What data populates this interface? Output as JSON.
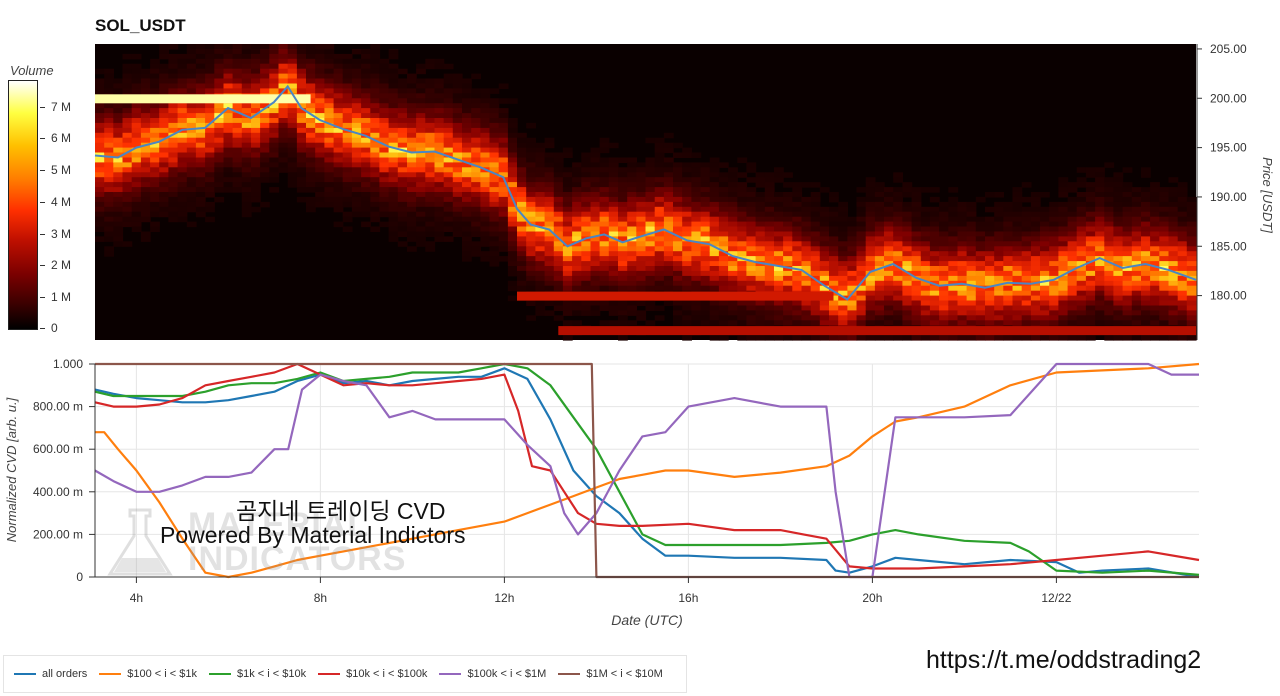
{
  "header": {
    "title": "SOL_USDT"
  },
  "colorbar": {
    "title": "Volume",
    "ticks": [
      "7 M",
      "6 M",
      "5 M",
      "4 M",
      "3 M",
      "2 M",
      "1 M",
      "0"
    ]
  },
  "watermark": {
    "line1": "곰지네 트레이딩 CVD",
    "line2": "Powered By Material Indictors",
    "logo_line1": "MATERIAL",
    "logo_line2": "INDICATORS"
  },
  "url": "https://t.me/oddstrading2",
  "colors": {
    "blue": "#1f77b4",
    "orange": "#ff7f0e",
    "green": "#2ca02c",
    "red": "#d62728",
    "purple": "#9467bd",
    "brown": "#8c564b"
  },
  "chart_data": [
    {
      "type": "heatmap",
      "title": "SOL_USDT",
      "ylabel": "Price [USDT]",
      "ylim": [
        175.5,
        205.5
      ],
      "y_ticks": [
        "205.00",
        "200.00",
        "195.00",
        "190.00",
        "185.00",
        "180.00"
      ],
      "y_tick_values": [
        205,
        200,
        195,
        190,
        185,
        180
      ],
      "x_ticks": [
        "4h",
        "8h",
        "12h",
        "16h",
        "20h",
        "12/22"
      ],
      "x_tick_values": [
        4,
        8,
        12,
        16,
        20,
        24
      ],
      "xlim": [
        3.1,
        27.1
      ],
      "colorbar_label": "Volume",
      "price_line": {
        "x": [
          3.1,
          3.6,
          4.0,
          4.5,
          5.0,
          5.5,
          6.0,
          6.5,
          7.0,
          7.3,
          7.6,
          8.0,
          8.5,
          9.0,
          9.5,
          10.0,
          10.5,
          11.0,
          11.5,
          12.0,
          12.3,
          12.6,
          13.0,
          13.4,
          13.8,
          14.2,
          14.6,
          15.0,
          15.5,
          16.0,
          16.5,
          17.0,
          17.5,
          18.0,
          18.5,
          19.0,
          19.5,
          20.0,
          20.5,
          21.0,
          21.5,
          22.0,
          22.5,
          23.0,
          23.5,
          24.0,
          24.5,
          25.0,
          25.5,
          26.0,
          26.5,
          27.1
        ],
        "y": [
          194.2,
          194.0,
          195.0,
          195.6,
          196.8,
          197.0,
          199.0,
          198.0,
          199.6,
          201.2,
          199.0,
          197.8,
          196.9,
          196.2,
          195.1,
          194.5,
          194.6,
          193.8,
          193.0,
          192.0,
          188.8,
          187.2,
          186.7,
          185.0,
          185.8,
          186.2,
          185.4,
          186.0,
          186.7,
          185.6,
          185.2,
          184.0,
          183.4,
          183.0,
          182.6,
          181.0,
          179.6,
          182.4,
          183.2,
          181.8,
          181.0,
          181.2,
          180.8,
          181.3,
          181.2,
          181.6,
          182.8,
          183.8,
          182.8,
          183.2,
          182.6,
          181.6
        ]
      },
      "volume_bands": [
        {
          "price": 200.0,
          "x_range": [
            3.1,
            7.8
          ],
          "volume_m": 7.4
        },
        {
          "price": 180.0,
          "x_range": [
            12.3,
            19.2
          ],
          "volume_m": 3.6
        },
        {
          "price": 176.5,
          "x_range": [
            13.2,
            27.1
          ],
          "volume_m": 3.1
        }
      ]
    },
    {
      "type": "line",
      "ylabel": "Normalized CVD [arb. u.]",
      "xlabel": "Date (UTC)",
      "ylim": [
        0,
        1
      ],
      "xlim": [
        3.1,
        27.1
      ],
      "y_ticks": [
        "1.000",
        "800.00 m",
        "600.00 m",
        "400.00 m",
        "200.00 m",
        "0"
      ],
      "y_tick_values": [
        1.0,
        0.8,
        0.6,
        0.4,
        0.2,
        0.0
      ],
      "x_ticks": [
        "4h",
        "8h",
        "12h",
        "16h",
        "20h",
        "12/22"
      ],
      "x_tick_values": [
        4,
        8,
        12,
        16,
        20,
        24
      ],
      "series": [
        {
          "name": "all orders",
          "color": "#1f77b4",
          "x": [
            3.1,
            3.5,
            4.0,
            4.5,
            5.0,
            5.5,
            6.0,
            6.5,
            7.0,
            7.5,
            8.0,
            8.5,
            9.0,
            9.5,
            10.0,
            10.5,
            11.0,
            11.5,
            12.0,
            12.5,
            13.0,
            13.5,
            14.0,
            14.5,
            15.0,
            15.5,
            16.0,
            17.0,
            18.0,
            19.0,
            19.2,
            19.5,
            20.0,
            20.5,
            21.0,
            22.0,
            23.0,
            24.0,
            24.5,
            25.0,
            26.0,
            27.1
          ],
          "y": [
            0.88,
            0.86,
            0.84,
            0.83,
            0.82,
            0.82,
            0.83,
            0.85,
            0.87,
            0.92,
            0.95,
            0.91,
            0.92,
            0.9,
            0.92,
            0.93,
            0.94,
            0.94,
            0.98,
            0.93,
            0.74,
            0.5,
            0.38,
            0.3,
            0.18,
            0.1,
            0.1,
            0.09,
            0.09,
            0.08,
            0.03,
            0.02,
            0.05,
            0.09,
            0.08,
            0.06,
            0.08,
            0.07,
            0.02,
            0.03,
            0.04,
            0.0
          ]
        },
        {
          "name": "$100 < i < $1k",
          "color": "#ff7f0e",
          "x": [
            3.1,
            3.3,
            3.6,
            4.0,
            4.5,
            5.0,
            5.5,
            6.0,
            6.5,
            7.0,
            7.5,
            8.0,
            9.0,
            10.0,
            11.0,
            12.0,
            12.5,
            13.0,
            13.5,
            14.0,
            14.5,
            15.0,
            15.5,
            16.0,
            17.0,
            18.0,
            19.0,
            19.5,
            20.0,
            20.5,
            21.0,
            22.0,
            23.0,
            24.0,
            25.0,
            26.0,
            27.1
          ],
          "y": [
            0.68,
            0.68,
            0.6,
            0.5,
            0.35,
            0.18,
            0.02,
            0.0,
            0.02,
            0.05,
            0.08,
            0.1,
            0.14,
            0.18,
            0.22,
            0.26,
            0.3,
            0.34,
            0.38,
            0.42,
            0.46,
            0.48,
            0.5,
            0.5,
            0.47,
            0.49,
            0.52,
            0.57,
            0.66,
            0.73,
            0.75,
            0.8,
            0.9,
            0.96,
            0.97,
            0.98,
            1.0
          ]
        },
        {
          "name": "$1k < i < $10k",
          "color": "#2ca02c",
          "x": [
            3.1,
            3.5,
            4.0,
            4.5,
            5.0,
            5.5,
            6.0,
            6.5,
            7.0,
            7.5,
            8.0,
            8.5,
            9.0,
            9.5,
            10.0,
            10.5,
            11.0,
            11.5,
            12.0,
            12.5,
            13.0,
            13.5,
            14.0,
            14.5,
            15.0,
            15.5,
            16.0,
            17.0,
            18.0,
            19.0,
            19.5,
            20.0,
            20.5,
            21.0,
            22.0,
            23.0,
            23.4,
            24.0,
            25.0,
            26.0,
            27.1
          ],
          "y": [
            0.87,
            0.85,
            0.85,
            0.85,
            0.85,
            0.87,
            0.9,
            0.91,
            0.91,
            0.93,
            0.96,
            0.92,
            0.93,
            0.94,
            0.96,
            0.96,
            0.96,
            0.98,
            1.0,
            0.98,
            0.9,
            0.75,
            0.6,
            0.4,
            0.2,
            0.15,
            0.15,
            0.15,
            0.15,
            0.16,
            0.17,
            0.2,
            0.22,
            0.2,
            0.17,
            0.16,
            0.12,
            0.03,
            0.02,
            0.03,
            0.01
          ]
        },
        {
          "name": "$10k < i < $100k",
          "color": "#d62728",
          "x": [
            3.1,
            3.5,
            4.0,
            4.5,
            5.0,
            5.5,
            6.0,
            6.5,
            7.0,
            7.5,
            8.0,
            8.5,
            9.0,
            9.5,
            10.0,
            10.5,
            11.0,
            11.5,
            12.0,
            12.3,
            12.6,
            13.0,
            13.3,
            13.6,
            14.0,
            14.5,
            15.0,
            16.0,
            17.0,
            18.0,
            18.5,
            19.0,
            19.5,
            20.0,
            21.0,
            22.0,
            23.0,
            24.0,
            25.0,
            26.0,
            27.1
          ],
          "y": [
            0.82,
            0.8,
            0.8,
            0.81,
            0.84,
            0.9,
            0.92,
            0.94,
            0.96,
            1.0,
            0.95,
            0.9,
            0.91,
            0.9,
            0.9,
            0.91,
            0.92,
            0.93,
            0.95,
            0.78,
            0.52,
            0.5,
            0.4,
            0.3,
            0.25,
            0.24,
            0.24,
            0.25,
            0.22,
            0.22,
            0.2,
            0.18,
            0.05,
            0.04,
            0.04,
            0.05,
            0.06,
            0.08,
            0.1,
            0.12,
            0.08
          ]
        },
        {
          "name": "$100k < i < $1M",
          "color": "#9467bd",
          "x": [
            3.1,
            3.5,
            4.0,
            4.5,
            5.0,
            5.5,
            6.0,
            6.5,
            7.0,
            7.3,
            7.6,
            8.0,
            8.5,
            9.0,
            9.5,
            10.0,
            10.5,
            11.0,
            11.5,
            12.0,
            12.5,
            13.0,
            13.3,
            13.6,
            14.0,
            14.5,
            15.0,
            15.5,
            16.0,
            17.0,
            18.0,
            19.0,
            19.2,
            19.5,
            20.0,
            20.5,
            21.0,
            22.0,
            23.0,
            24.0,
            24.5,
            26.0,
            26.5,
            27.1
          ],
          "y": [
            0.5,
            0.45,
            0.4,
            0.4,
            0.43,
            0.47,
            0.47,
            0.49,
            0.6,
            0.6,
            0.88,
            0.95,
            0.92,
            0.9,
            0.75,
            0.78,
            0.74,
            0.74,
            0.74,
            0.74,
            0.62,
            0.52,
            0.3,
            0.2,
            0.3,
            0.5,
            0.66,
            0.68,
            0.8,
            0.84,
            0.8,
            0.8,
            0.4,
            0.0,
            0.0,
            0.75,
            0.75,
            0.75,
            0.76,
            1.0,
            1.0,
            1.0,
            0.95,
            0.95
          ]
        },
        {
          "name": "$1M < i < $10M",
          "color": "#8c564b",
          "x": [
            3.1,
            13.9,
            14.0,
            27.1
          ],
          "y": [
            1.0,
            1.0,
            0.0,
            0.0
          ]
        }
      ]
    }
  ]
}
